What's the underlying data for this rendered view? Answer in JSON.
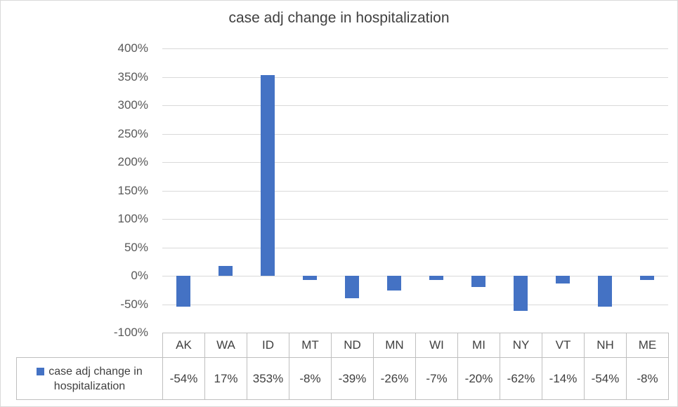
{
  "chart_data": {
    "type": "bar",
    "title": "case adj change in hospitalization",
    "categories": [
      "AK",
      "WA",
      "ID",
      "MT",
      "ND",
      "MN",
      "WI",
      "MI",
      "NY",
      "VT",
      "NH",
      "ME"
    ],
    "series": [
      {
        "name": "case adj change in hospitalization",
        "values": [
          -54,
          17,
          353,
          -8,
          -39,
          -26,
          -7,
          -20,
          -62,
          -14,
          -54,
          -8
        ]
      }
    ],
    "value_labels": [
      "-54%",
      "17%",
      "353%",
      "-8%",
      "-39%",
      "-26%",
      "-7%",
      "-20%",
      "-62%",
      "-14%",
      "-54%",
      "-8%"
    ],
    "xlabel": "",
    "ylabel": "",
    "ylim": [
      -100,
      400
    ],
    "ytick_step": 50,
    "ytick_labels": [
      "400%",
      "350%",
      "300%",
      "250%",
      "200%",
      "150%",
      "100%",
      "50%",
      "0%",
      "-50%",
      "-100%"
    ],
    "grid": true,
    "legend_position": "data-table-left",
    "colors": {
      "bar": "#4472C4",
      "gridline": "#D9D9D9",
      "table_border": "#BFBFBF",
      "title_text": "#404040",
      "axis_text": "#595959",
      "table_text": "#404040"
    }
  }
}
